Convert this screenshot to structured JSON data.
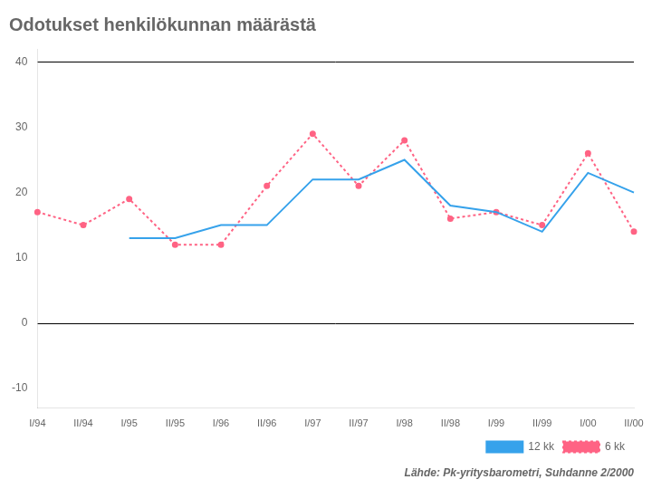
{
  "chart_data": {
    "type": "line",
    "title": "Odotukset henkilökunnan määrästä",
    "subtitle": "Lähde: Pk-yritysbarometri, Suhdanne 2/2000",
    "categories": [
      "I/94",
      "II/94",
      "I/95",
      "II/95",
      "I/96",
      "II/96",
      "I/97",
      "II/97",
      "I/98",
      "II/98",
      "I/99",
      "II/99",
      "I/00",
      "II/00"
    ],
    "series": [
      {
        "name": "12 kk",
        "values": [
          null,
          null,
          13,
          13,
          15,
          15,
          22,
          22,
          25,
          18,
          17,
          14,
          23,
          20
        ],
        "line_style": "solid"
      },
      {
        "name": "6 kk",
        "values": [
          17,
          15,
          19,
          12,
          12,
          21,
          29,
          21,
          28,
          16,
          17,
          15,
          26,
          14
        ],
        "line_style": "dotted",
        "marker": "circle"
      }
    ],
    "hlines": [
      0,
      40
    ],
    "ylim": [
      -13,
      42
    ],
    "yticks": [
      -10,
      0,
      10,
      20,
      30,
      40
    ],
    "grid": false,
    "legend": "lower right"
  }
}
